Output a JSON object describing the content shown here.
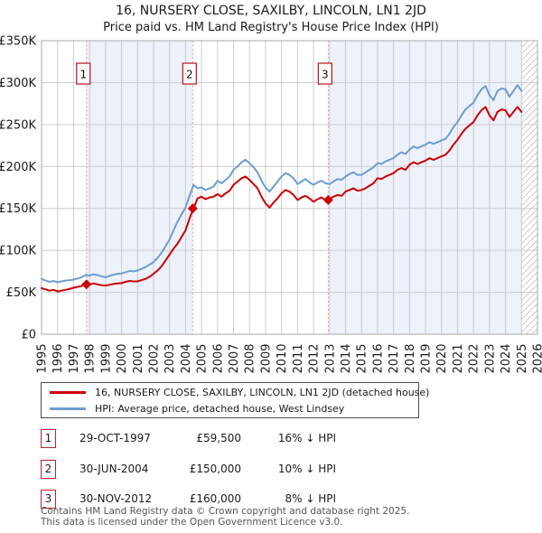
{
  "title": "16, NURSERY CLOSE, SAXILBY, LINCOLN, LN1 2JD",
  "subtitle": "Price paid vs. HM Land Registry's House Price Index (HPI)",
  "colors": {
    "property_line": "#cc0000",
    "hpi_line": "#6d9dd1",
    "event_dashed_line": "#f0909b",
    "shaded_band": "#edf1fa",
    "grid": "#cccccc",
    "frame": "#aaaaaa",
    "hatch": "#c6c9d0",
    "badge_border": "#bf2227",
    "badge_text": "#111111",
    "tick_text": "#1a1a1a"
  },
  "transactions": [
    {
      "num": "1",
      "date": "29-OCT-1997",
      "price": "£59,500",
      "hpi_diff": "16% ↓ HPI",
      "year": 1997.81,
      "value_k": 59.5
    },
    {
      "num": "2",
      "date": "30-JUN-2004",
      "price": "£150,000",
      "hpi_diff": "10% ↓ HPI",
      "year": 2004.45,
      "value_k": 150
    },
    {
      "num": "3",
      "date": "30-NOV-2012",
      "price": "£160,000",
      "hpi_diff": "8% ↓ HPI",
      "year": 2012.92,
      "value_k": 160
    }
  ],
  "footer": {
    "line1": "Contains HM Land Registry data © Crown copyright and database right 2025.",
    "line2": "This data is licensed under the Open Government Licence v3.0."
  },
  "chart_data": {
    "type": "line",
    "title": "Price paid vs. HM Land Registry's House Price Index (HPI)",
    "x_range": [
      1995,
      2026
    ],
    "y_range_k": [
      0,
      350
    ],
    "grid": true,
    "legend_position": "bottom",
    "y_ticks": [
      {
        "value_k": 0,
        "label": "£0"
      },
      {
        "value_k": 50,
        "label": "£50K"
      },
      {
        "value_k": 100,
        "label": "£100K"
      },
      {
        "value_k": 150,
        "label": "£150K"
      },
      {
        "value_k": 200,
        "label": "£200K"
      },
      {
        "value_k": 250,
        "label": "£250K"
      },
      {
        "value_k": 300,
        "label": "£300K"
      },
      {
        "value_k": 350,
        "label": "£350K"
      }
    ],
    "x_ticks": [
      1995,
      1996,
      1997,
      1998,
      1999,
      2000,
      2001,
      2002,
      2003,
      2004,
      2005,
      2006,
      2007,
      2008,
      2009,
      2010,
      2011,
      2012,
      2013,
      2014,
      2015,
      2016,
      2017,
      2018,
      2019,
      2020,
      2021,
      2022,
      2023,
      2024,
      2025,
      2026
    ],
    "shaded_bands": [
      {
        "from": 1997.81,
        "to": 2004.45
      },
      {
        "from": 2012.92,
        "to": 2025.04
      }
    ],
    "hatch_band": {
      "from": 2025.04,
      "to": 2026
    },
    "series": [
      {
        "name": "16, NURSERY CLOSE, SAXILBY, LINCOLN, LN1 2JD (detached house)",
        "color_key": "property_line",
        "x_start": 1995,
        "x_step": 0.25,
        "values_k": [
          55,
          53.5,
          52,
          53,
          51,
          52,
          53,
          54,
          55.5,
          56.5,
          57.5,
          59.5,
          59.5,
          60.5,
          59.5,
          58.5,
          58,
          59,
          60,
          60.5,
          61,
          62.5,
          63.5,
          63,
          63,
          64.5,
          66,
          68.5,
          72,
          76,
          81,
          88,
          95,
          102,
          108,
          116,
          124,
          138,
          150,
          162,
          164,
          161,
          163,
          164,
          167,
          164,
          168,
          171,
          178,
          182,
          186,
          188,
          184,
          179,
          174,
          164,
          156,
          151,
          157,
          162,
          168,
          172,
          170,
          166,
          160,
          163,
          165,
          162,
          158,
          161,
          163,
          160,
          161,
          164,
          166,
          165,
          170,
          172,
          174,
          171,
          172,
          174,
          177,
          180,
          186,
          185,
          188,
          190,
          192,
          196,
          198,
          196,
          202,
          205,
          203,
          205,
          207,
          210,
          208,
          210,
          212,
          214,
          219,
          226,
          232,
          239,
          245,
          249,
          253,
          261,
          267,
          271,
          261,
          255,
          265,
          268,
          267,
          259,
          265,
          271,
          265
        ]
      },
      {
        "name": "HPI: Average price, detached house, West Lindsey",
        "color_key": "hpi_line",
        "x_start": 1995,
        "x_step": 0.25,
        "values_k": [
          66,
          64,
          62.5,
          63.5,
          62,
          63,
          64,
          64.5,
          65,
          66.5,
          68,
          70.5,
          70,
          71.5,
          70.5,
          69,
          68,
          69.5,
          71,
          72,
          72.5,
          74,
          75.5,
          75,
          76,
          78,
          80,
          83,
          86,
          91,
          97,
          105,
          113,
          124,
          134,
          143,
          151,
          165,
          178,
          174,
          175,
          172,
          174,
          176,
          183,
          180,
          184,
          188,
          196,
          200,
          205,
          208,
          204,
          199,
          193,
          183,
          175,
          170,
          176,
          182,
          188,
          192,
          190,
          186,
          179,
          182,
          185,
          181,
          178,
          181,
          183,
          180,
          179,
          182,
          185,
          184,
          188,
          191,
          193,
          190,
          190,
          193,
          196,
          199,
          204,
          203,
          206,
          208,
          210,
          214,
          217,
          215,
          220,
          224,
          222,
          224,
          226,
          229,
          227,
          229,
          231,
          233,
          239,
          247,
          253,
          261,
          268,
          272,
          276,
          285,
          292,
          296,
          285,
          279,
          290,
          293,
          292,
          283,
          290,
          297,
          290
        ]
      }
    ]
  }
}
